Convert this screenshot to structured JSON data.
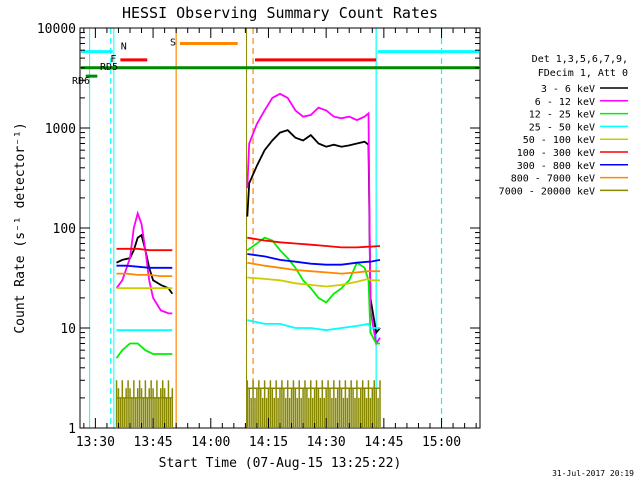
{
  "chart_data": {
    "type": "line",
    "title": "HESSI Observing Summary Count Rates",
    "xlabel": "Start Time (07-Aug-15 13:25:22)",
    "ylabel": "Count Rate (s⁻¹ detector⁻¹)",
    "yscale": "log",
    "ylim": [
      1,
      10000
    ],
    "xlim_minutes": [
      -4,
      100
    ],
    "x_ticks": [
      {
        "label": "13:30",
        "t": 0
      },
      {
        "label": "13:45",
        "t": 15
      },
      {
        "label": "14:00",
        "t": 30
      },
      {
        "label": "14:15",
        "t": 45
      },
      {
        "label": "14:30",
        "t": 60
      },
      {
        "label": "14:45",
        "t": 75
      },
      {
        "label": "15:00",
        "t": 90
      }
    ],
    "y_ticks": [
      {
        "label": "1",
        "v": 1
      },
      {
        "label": "10",
        "v": 10
      },
      {
        "label": "100",
        "v": 100
      },
      {
        "label": "1000",
        "v": 1000
      },
      {
        "label": "10000",
        "v": 10000
      }
    ],
    "legend_header": [
      "Det 1,3,5,6,7,9,",
      "FDecim 1, Att 0"
    ],
    "legend_placement": "right",
    "series": [
      {
        "name": "3 - 6 keV",
        "color": "#000000",
        "seg1": [
          [
            5.5,
            45
          ],
          [
            7,
            48
          ],
          [
            9,
            50
          ],
          [
            10,
            60
          ],
          [
            11,
            80
          ],
          [
            12,
            85
          ],
          [
            13,
            60
          ],
          [
            14,
            40
          ],
          [
            15,
            30
          ],
          [
            17,
            27
          ],
          [
            19,
            25
          ],
          [
            20,
            22
          ]
        ],
        "seg2": [
          [
            39.5,
            130
          ],
          [
            40,
            280
          ],
          [
            42,
            420
          ],
          [
            44,
            600
          ],
          [
            46,
            750
          ],
          [
            48,
            900
          ],
          [
            50,
            950
          ],
          [
            52,
            800
          ],
          [
            54,
            750
          ],
          [
            56,
            850
          ],
          [
            58,
            700
          ],
          [
            60,
            650
          ],
          [
            62,
            680
          ],
          [
            64,
            650
          ],
          [
            66,
            670
          ],
          [
            68,
            700
          ],
          [
            70,
            730
          ],
          [
            71,
            680
          ],
          [
            71.5,
            20
          ],
          [
            73,
            9
          ],
          [
            74,
            10
          ]
        ]
      },
      {
        "name": "6 - 12 keV",
        "color": "#ff00ff",
        "seg1": [
          [
            5.5,
            25
          ],
          [
            7,
            30
          ],
          [
            9,
            50
          ],
          [
            10,
            100
          ],
          [
            11,
            140
          ],
          [
            12,
            110
          ],
          [
            13,
            60
          ],
          [
            14,
            30
          ],
          [
            15,
            20
          ],
          [
            17,
            15
          ],
          [
            19,
            14
          ],
          [
            20,
            14
          ]
        ],
        "seg2": [
          [
            39.5,
            250
          ],
          [
            40,
            700
          ],
          [
            42,
            1100
          ],
          [
            44,
            1500
          ],
          [
            46,
            2000
          ],
          [
            48,
            2200
          ],
          [
            50,
            2000
          ],
          [
            52,
            1500
          ],
          [
            54,
            1300
          ],
          [
            56,
            1350
          ],
          [
            58,
            1600
          ],
          [
            60,
            1500
          ],
          [
            62,
            1300
          ],
          [
            64,
            1250
          ],
          [
            66,
            1300
          ],
          [
            68,
            1200
          ],
          [
            70,
            1300
          ],
          [
            71,
            1400
          ],
          [
            71.5,
            15
          ],
          [
            73,
            7
          ],
          [
            74,
            8
          ]
        ]
      },
      {
        "name": "12 - 25 keV",
        "color": "#00ee00",
        "seg1": [
          [
            5.5,
            5
          ],
          [
            7,
            6
          ],
          [
            9,
            7
          ],
          [
            11,
            7
          ],
          [
            13,
            6
          ],
          [
            15,
            5.5
          ],
          [
            17,
            5.5
          ],
          [
            20,
            5.5
          ]
        ],
        "seg2": [
          [
            39.5,
            60
          ],
          [
            42,
            70
          ],
          [
            44,
            80
          ],
          [
            46,
            75
          ],
          [
            48,
            60
          ],
          [
            50,
            50
          ],
          [
            52,
            40
          ],
          [
            54,
            30
          ],
          [
            56,
            25
          ],
          [
            58,
            20
          ],
          [
            60,
            18
          ],
          [
            62,
            22
          ],
          [
            64,
            25
          ],
          [
            66,
            30
          ],
          [
            68,
            45
          ],
          [
            70,
            40
          ],
          [
            71,
            30
          ],
          [
            71.5,
            9
          ],
          [
            73,
            7
          ],
          [
            74,
            7
          ]
        ]
      },
      {
        "name": "25 - 50 keV",
        "color": "#00ffff",
        "seg1": [
          [
            5.5,
            9.5
          ],
          [
            8,
            9.5
          ],
          [
            11,
            9.5
          ],
          [
            14,
            9.5
          ],
          [
            17,
            9.5
          ],
          [
            20,
            9.5
          ]
        ],
        "seg2": [
          [
            39.5,
            12
          ],
          [
            44,
            11
          ],
          [
            48,
            11
          ],
          [
            52,
            10
          ],
          [
            56,
            10
          ],
          [
            60,
            9.5
          ],
          [
            64,
            10
          ],
          [
            68,
            10.5
          ],
          [
            71,
            11
          ],
          [
            71.5,
            10
          ],
          [
            73,
            10
          ],
          [
            74,
            10
          ]
        ]
      },
      {
        "name": "50 - 100 keV",
        "color": "#cccc00",
        "seg1": [
          [
            5.5,
            25
          ],
          [
            8,
            25
          ],
          [
            11,
            25
          ],
          [
            14,
            25
          ],
          [
            17,
            25
          ],
          [
            20,
            25
          ]
        ],
        "seg2": [
          [
            39.5,
            32
          ],
          [
            44,
            31
          ],
          [
            48,
            30
          ],
          [
            52,
            28
          ],
          [
            56,
            27
          ],
          [
            60,
            26
          ],
          [
            64,
            27
          ],
          [
            68,
            29
          ],
          [
            71,
            31
          ],
          [
            71.5,
            30
          ],
          [
            74,
            30
          ]
        ]
      },
      {
        "name": "100 - 300 keV",
        "color": "#ff0000",
        "seg1": [
          [
            5.5,
            62
          ],
          [
            8,
            62
          ],
          [
            11,
            62
          ],
          [
            14,
            60
          ],
          [
            17,
            60
          ],
          [
            20,
            60
          ]
        ],
        "seg2": [
          [
            39.5,
            80
          ],
          [
            44,
            75
          ],
          [
            48,
            72
          ],
          [
            52,
            70
          ],
          [
            56,
            68
          ],
          [
            60,
            66
          ],
          [
            64,
            64
          ],
          [
            68,
            64
          ],
          [
            71,
            65
          ],
          [
            71.5,
            65
          ],
          [
            74,
            66
          ]
        ]
      },
      {
        "name": "300 - 800 keV",
        "color": "#0000ff",
        "seg1": [
          [
            5.5,
            42
          ],
          [
            8,
            42
          ],
          [
            11,
            41
          ],
          [
            14,
            40
          ],
          [
            17,
            40
          ],
          [
            20,
            40
          ]
        ],
        "seg2": [
          [
            39.5,
            55
          ],
          [
            44,
            52
          ],
          [
            48,
            48
          ],
          [
            52,
            46
          ],
          [
            56,
            44
          ],
          [
            60,
            43
          ],
          [
            64,
            43
          ],
          [
            68,
            45
          ],
          [
            71,
            46
          ],
          [
            71.5,
            46
          ],
          [
            74,
            48
          ]
        ]
      },
      {
        "name": "800 - 7000 keV",
        "color": "#ff8800",
        "seg1": [
          [
            5.5,
            35
          ],
          [
            8,
            35
          ],
          [
            11,
            34
          ],
          [
            14,
            34
          ],
          [
            17,
            33
          ],
          [
            20,
            33
          ]
        ],
        "seg2": [
          [
            39.5,
            45
          ],
          [
            44,
            42
          ],
          [
            48,
            40
          ],
          [
            52,
            38
          ],
          [
            56,
            37
          ],
          [
            60,
            36
          ],
          [
            64,
            35
          ],
          [
            68,
            36
          ],
          [
            71,
            37
          ],
          [
            71.5,
            37
          ],
          [
            74,
            37
          ]
        ]
      },
      {
        "name": "7000 - 20000 keV",
        "color": "#888800",
        "seg1": [
          [
            5.5,
            2
          ],
          [
            20,
            2
          ]
        ],
        "seg2": [
          [
            39.5,
            2.5
          ],
          [
            74,
            2.5
          ]
        ]
      }
    ],
    "annotations": {
      "bars": [
        {
          "label": "N",
          "color": "#00ffff",
          "t0": -4,
          "t1": 4.5,
          "v": 5800
        },
        {
          "label": "N",
          "color": "#00ffff",
          "t0": 73.5,
          "t1": 100,
          "v": 5800
        },
        {
          "label": "F",
          "color": "#ff0000",
          "t0": 6.5,
          "t1": 13.5,
          "v": 4800
        },
        {
          "label": "F",
          "color": "#ff0000",
          "t0": 41.5,
          "t1": 73,
          "v": 4800
        },
        {
          "label": "S",
          "color": "#ff8800",
          "t0": 22,
          "t1": 37,
          "v": 7000
        },
        {
          "label": "RD6",
          "color": "#008800",
          "t0": -2.5,
          "t1": 0.5,
          "v": 3300
        },
        {
          "label": "RD5",
          "color": "#008800",
          "t0": -4,
          "t1": 100,
          "v": 4000
        }
      ],
      "vlines": [
        {
          "t": 4,
          "color": "#00ffff",
          "style": "dashed"
        },
        {
          "t": 21,
          "color": "#ff8800",
          "style": "solid"
        },
        {
          "t": 41,
          "color": "#ff8800",
          "style": "dashed"
        },
        {
          "t": 73,
          "color": "#00ffff",
          "style": "solid"
        },
        {
          "t": 90,
          "color": "#00ffff",
          "style": "dashed"
        }
      ],
      "boundaries": [
        {
          "t": -1.5,
          "color": "#00ffff"
        },
        {
          "t": 4.8,
          "color": "#00ffff"
        },
        {
          "t": 39.3,
          "color": "#888800"
        }
      ]
    },
    "footer_date": "31-Jul-2017 20:19"
  }
}
